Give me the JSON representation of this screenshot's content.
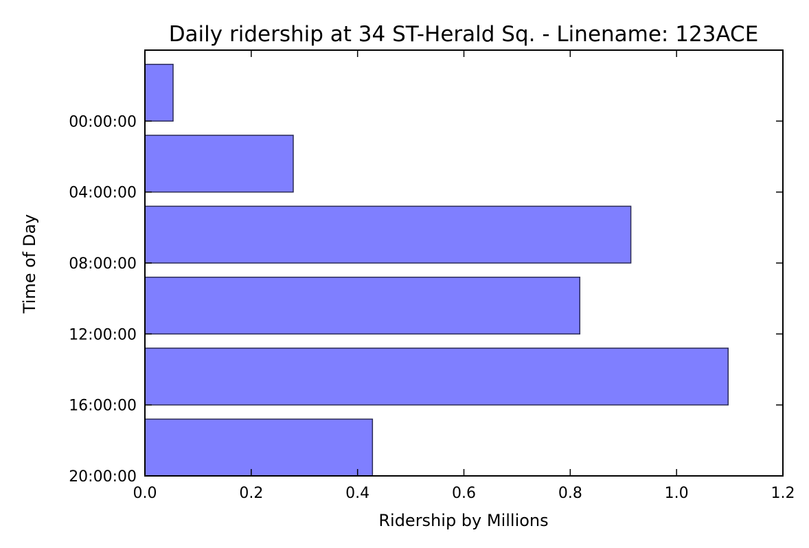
{
  "chart_data": {
    "type": "bar",
    "orientation": "horizontal",
    "title": "Daily ridership at 34 ST-Herald Sq. - Linename: 123ACE",
    "xlabel": "Ridership by Millions",
    "ylabel": "Time of Day",
    "xlim": [
      0.0,
      1.2
    ],
    "xticks": [
      "0.0",
      "0.2",
      "0.4",
      "0.6",
      "0.8",
      "1.0",
      "1.2"
    ],
    "yticks": [
      "00:00:00",
      "04:00:00",
      "08:00:00",
      "12:00:00",
      "16:00:00",
      "20:00:00"
    ],
    "categories": [
      "00:00:00",
      "04:00:00",
      "08:00:00",
      "12:00:00",
      "16:00:00",
      "20:00:00"
    ],
    "values": [
      0.053,
      0.279,
      0.914,
      0.818,
      1.097,
      0.428
    ],
    "grid": false,
    "legend": "none",
    "bar_color": "#7f7fff",
    "bar_edge_color": "#2a2a55"
  }
}
